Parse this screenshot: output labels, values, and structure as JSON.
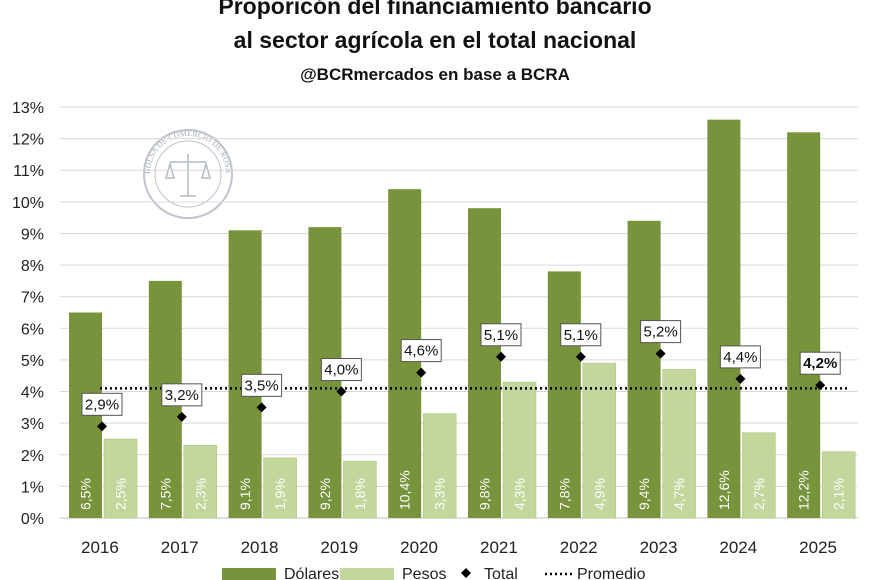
{
  "chart_data": {
    "type": "bar",
    "title": "Proporicón del financiamiento bancario",
    "title_line2": "al sector agrícola en el total nacional",
    "subtitle": "@BCRmercados en base a BCRA",
    "categories": [
      "2016",
      "2017",
      "2018",
      "2019",
      "2020",
      "2021",
      "2022",
      "2023",
      "2024",
      "2025"
    ],
    "series": [
      {
        "name": "Dólares",
        "color": "#77933c",
        "values": [
          6.5,
          7.5,
          9.1,
          9.2,
          10.4,
          9.8,
          7.8,
          9.4,
          12.6,
          12.2
        ],
        "labels": [
          "6,5%",
          "7,5%",
          "9,1%",
          "9,2%",
          "10,4%",
          "9,8%",
          "7,8%",
          "9,4%",
          "12,6%",
          "12,2%"
        ]
      },
      {
        "name": "Pesos",
        "color": "#c3d69b",
        "values": [
          2.5,
          2.3,
          1.9,
          1.8,
          3.3,
          4.3,
          4.9,
          4.7,
          2.7,
          2.1
        ],
        "labels": [
          "2,5%",
          "2,3%",
          "1,9%",
          "1,8%",
          "3,3%",
          "4,3%",
          "4,9%",
          "4,7%",
          "2,7%",
          "2,1%"
        ]
      },
      {
        "name": "Total",
        "type": "scatter",
        "color": "#000000",
        "values": [
          2.9,
          3.2,
          3.5,
          4.0,
          4.6,
          5.1,
          5.1,
          5.2,
          4.4,
          4.2
        ],
        "labels": [
          "2,9%",
          "3,2%",
          "3,5%",
          "4,0%",
          "4,6%",
          "5,1%",
          "5,1%",
          "5,2%",
          "4,4%",
          "4,2%"
        ]
      },
      {
        "name": "Promedio",
        "type": "line",
        "style": "dotted",
        "color": "#000000",
        "value": 4.1
      }
    ],
    "ylim": [
      0,
      13
    ],
    "yticks": [
      "0%",
      "1%",
      "2%",
      "3%",
      "4%",
      "5%",
      "6%",
      "7%",
      "8%",
      "9%",
      "10%",
      "11%",
      "12%",
      "13%"
    ],
    "xlabel": "",
    "ylabel": "",
    "grid": true,
    "legend": "bottom",
    "watermark": "BOLSA DE COMERCIO DE ROSARIO"
  }
}
